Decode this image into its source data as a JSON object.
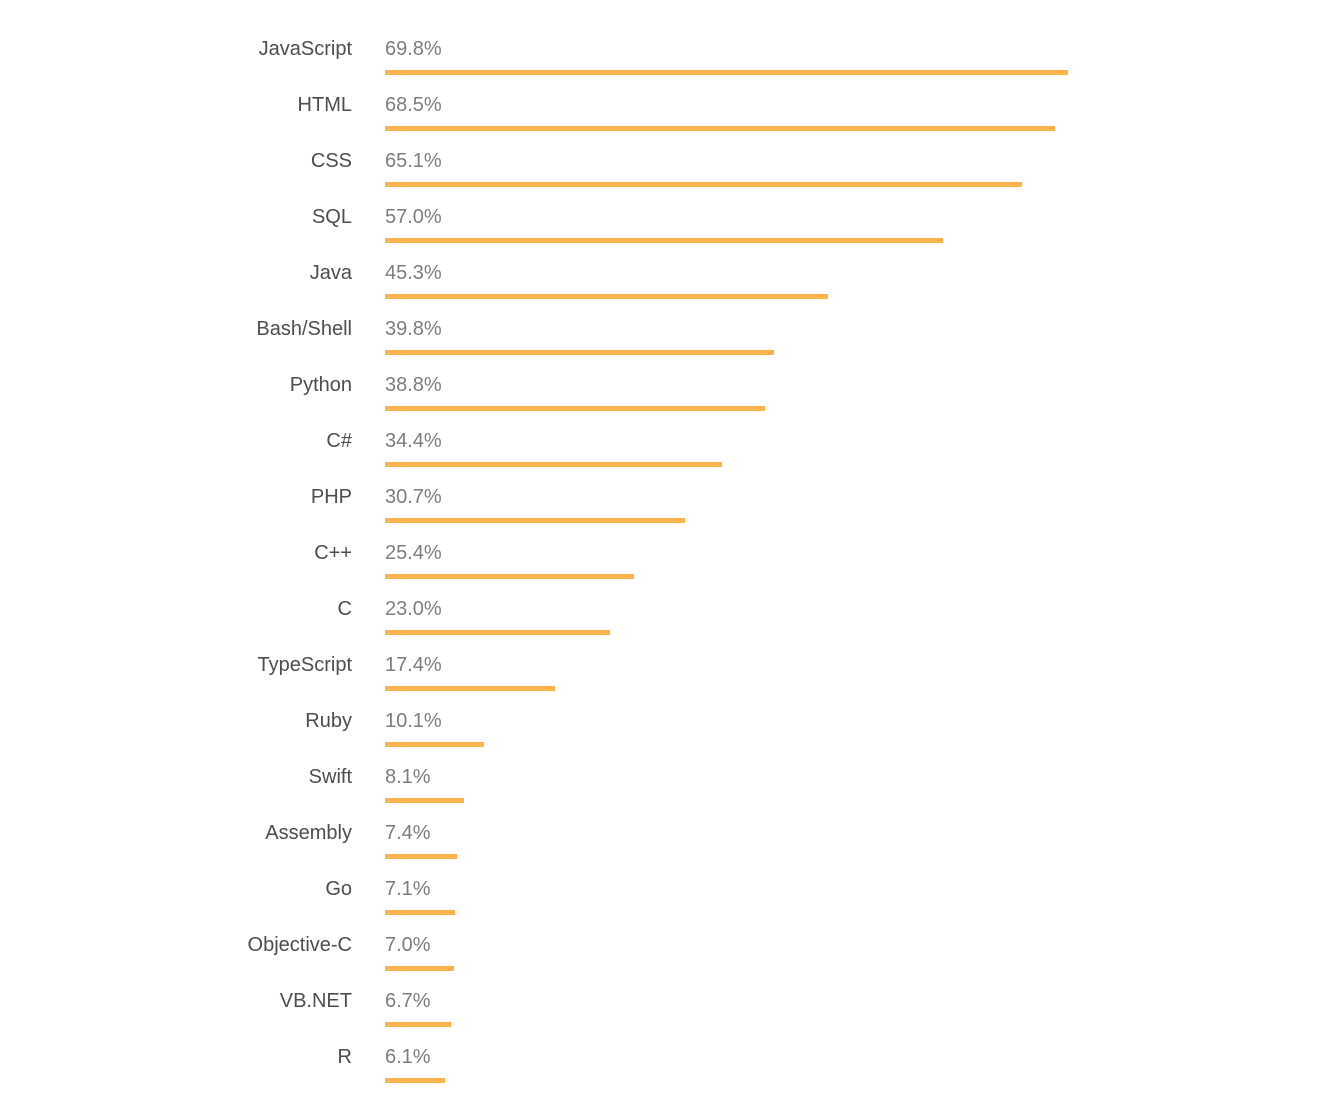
{
  "chart_data": {
    "type": "bar",
    "orientation": "horizontal",
    "title": "",
    "xlabel": "",
    "ylabel": "",
    "grid": false,
    "legend": false,
    "xlim": [
      0,
      69.8
    ],
    "categories": [
      "JavaScript",
      "HTML",
      "CSS",
      "SQL",
      "Java",
      "Bash/Shell",
      "Python",
      "C#",
      "PHP",
      "C++",
      "C",
      "TypeScript",
      "Ruby",
      "Swift",
      "Assembly",
      "Go",
      "Objective-C",
      "VB.NET",
      "R"
    ],
    "values": [
      69.8,
      68.5,
      65.1,
      57.0,
      45.3,
      39.8,
      38.8,
      34.4,
      30.7,
      25.4,
      23.0,
      17.4,
      10.1,
      8.1,
      7.4,
      7.1,
      7.0,
      6.7,
      6.1
    ],
    "value_labels": [
      "69.8%",
      "68.5%",
      "65.1%",
      "57.0%",
      "45.3%",
      "39.8%",
      "38.8%",
      "34.4%",
      "30.7%",
      "25.4%",
      "23.0%",
      "17.4%",
      "10.1%",
      "8.1%",
      "7.4%",
      "7.1%",
      "7.0%",
      "6.7%",
      "6.1%"
    ],
    "colors": {
      "bar": "#FBB34D",
      "category_label": "#4D4D4D",
      "value_label": "#7D7D7D",
      "background": "#FFFFFF"
    }
  }
}
